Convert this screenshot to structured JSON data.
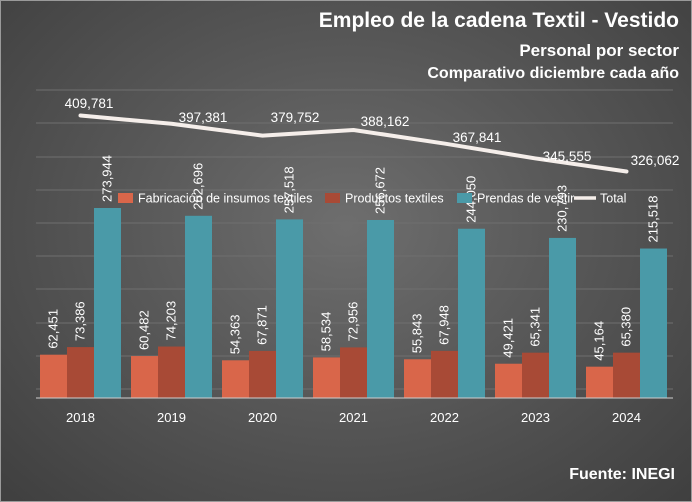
{
  "title": "Empleo de la cadena Textil - Vestido",
  "subtitle": "Personal por sector",
  "subtitle2": "Comparativo diciembre cada año",
  "source": "Fuente: INEGI",
  "chart_data": {
    "type": "bar",
    "categories": [
      "2018",
      "2019",
      "2020",
      "2021",
      "2022",
      "2023",
      "2024"
    ],
    "series": [
      {
        "name": "Fabricación de insumos textiles",
        "color": "#d9664a",
        "values": [
          62451,
          60482,
          54363,
          58534,
          55843,
          49421,
          45164
        ]
      },
      {
        "name": "Productos textiles",
        "color": "#a84a36",
        "values": [
          73386,
          74203,
          67871,
          72956,
          67948,
          65341,
          65380
        ]
      },
      {
        "name": "Prendas de vestir",
        "color": "#4a9aa8",
        "values": [
          273944,
          262696,
          257518,
          256672,
          244050,
          230793,
          215518
        ]
      }
    ],
    "line_series": {
      "name": "Total",
      "color": "#f5eeea",
      "values": [
        409781,
        397381,
        379752,
        388162,
        367841,
        345555,
        326062
      ]
    },
    "labels": {
      "bars": [
        [
          "62,451",
          "60,482",
          "54,363",
          "58,534",
          "55,843",
          "49,421",
          "45,164"
        ],
        [
          "73,386",
          "74,203",
          "67,871",
          "72,956",
          "67,948",
          "65,341",
          "65,380"
        ],
        [
          "273,944",
          "262,696",
          "257,518",
          "256,672",
          "244,050",
          "230,793",
          "215,518"
        ]
      ],
      "total": [
        "409,781",
        "397,381",
        "379,752",
        "388,162",
        "367,841",
        "345,555",
        "326,062"
      ]
    },
    "legend_position": "top",
    "grid": true
  }
}
